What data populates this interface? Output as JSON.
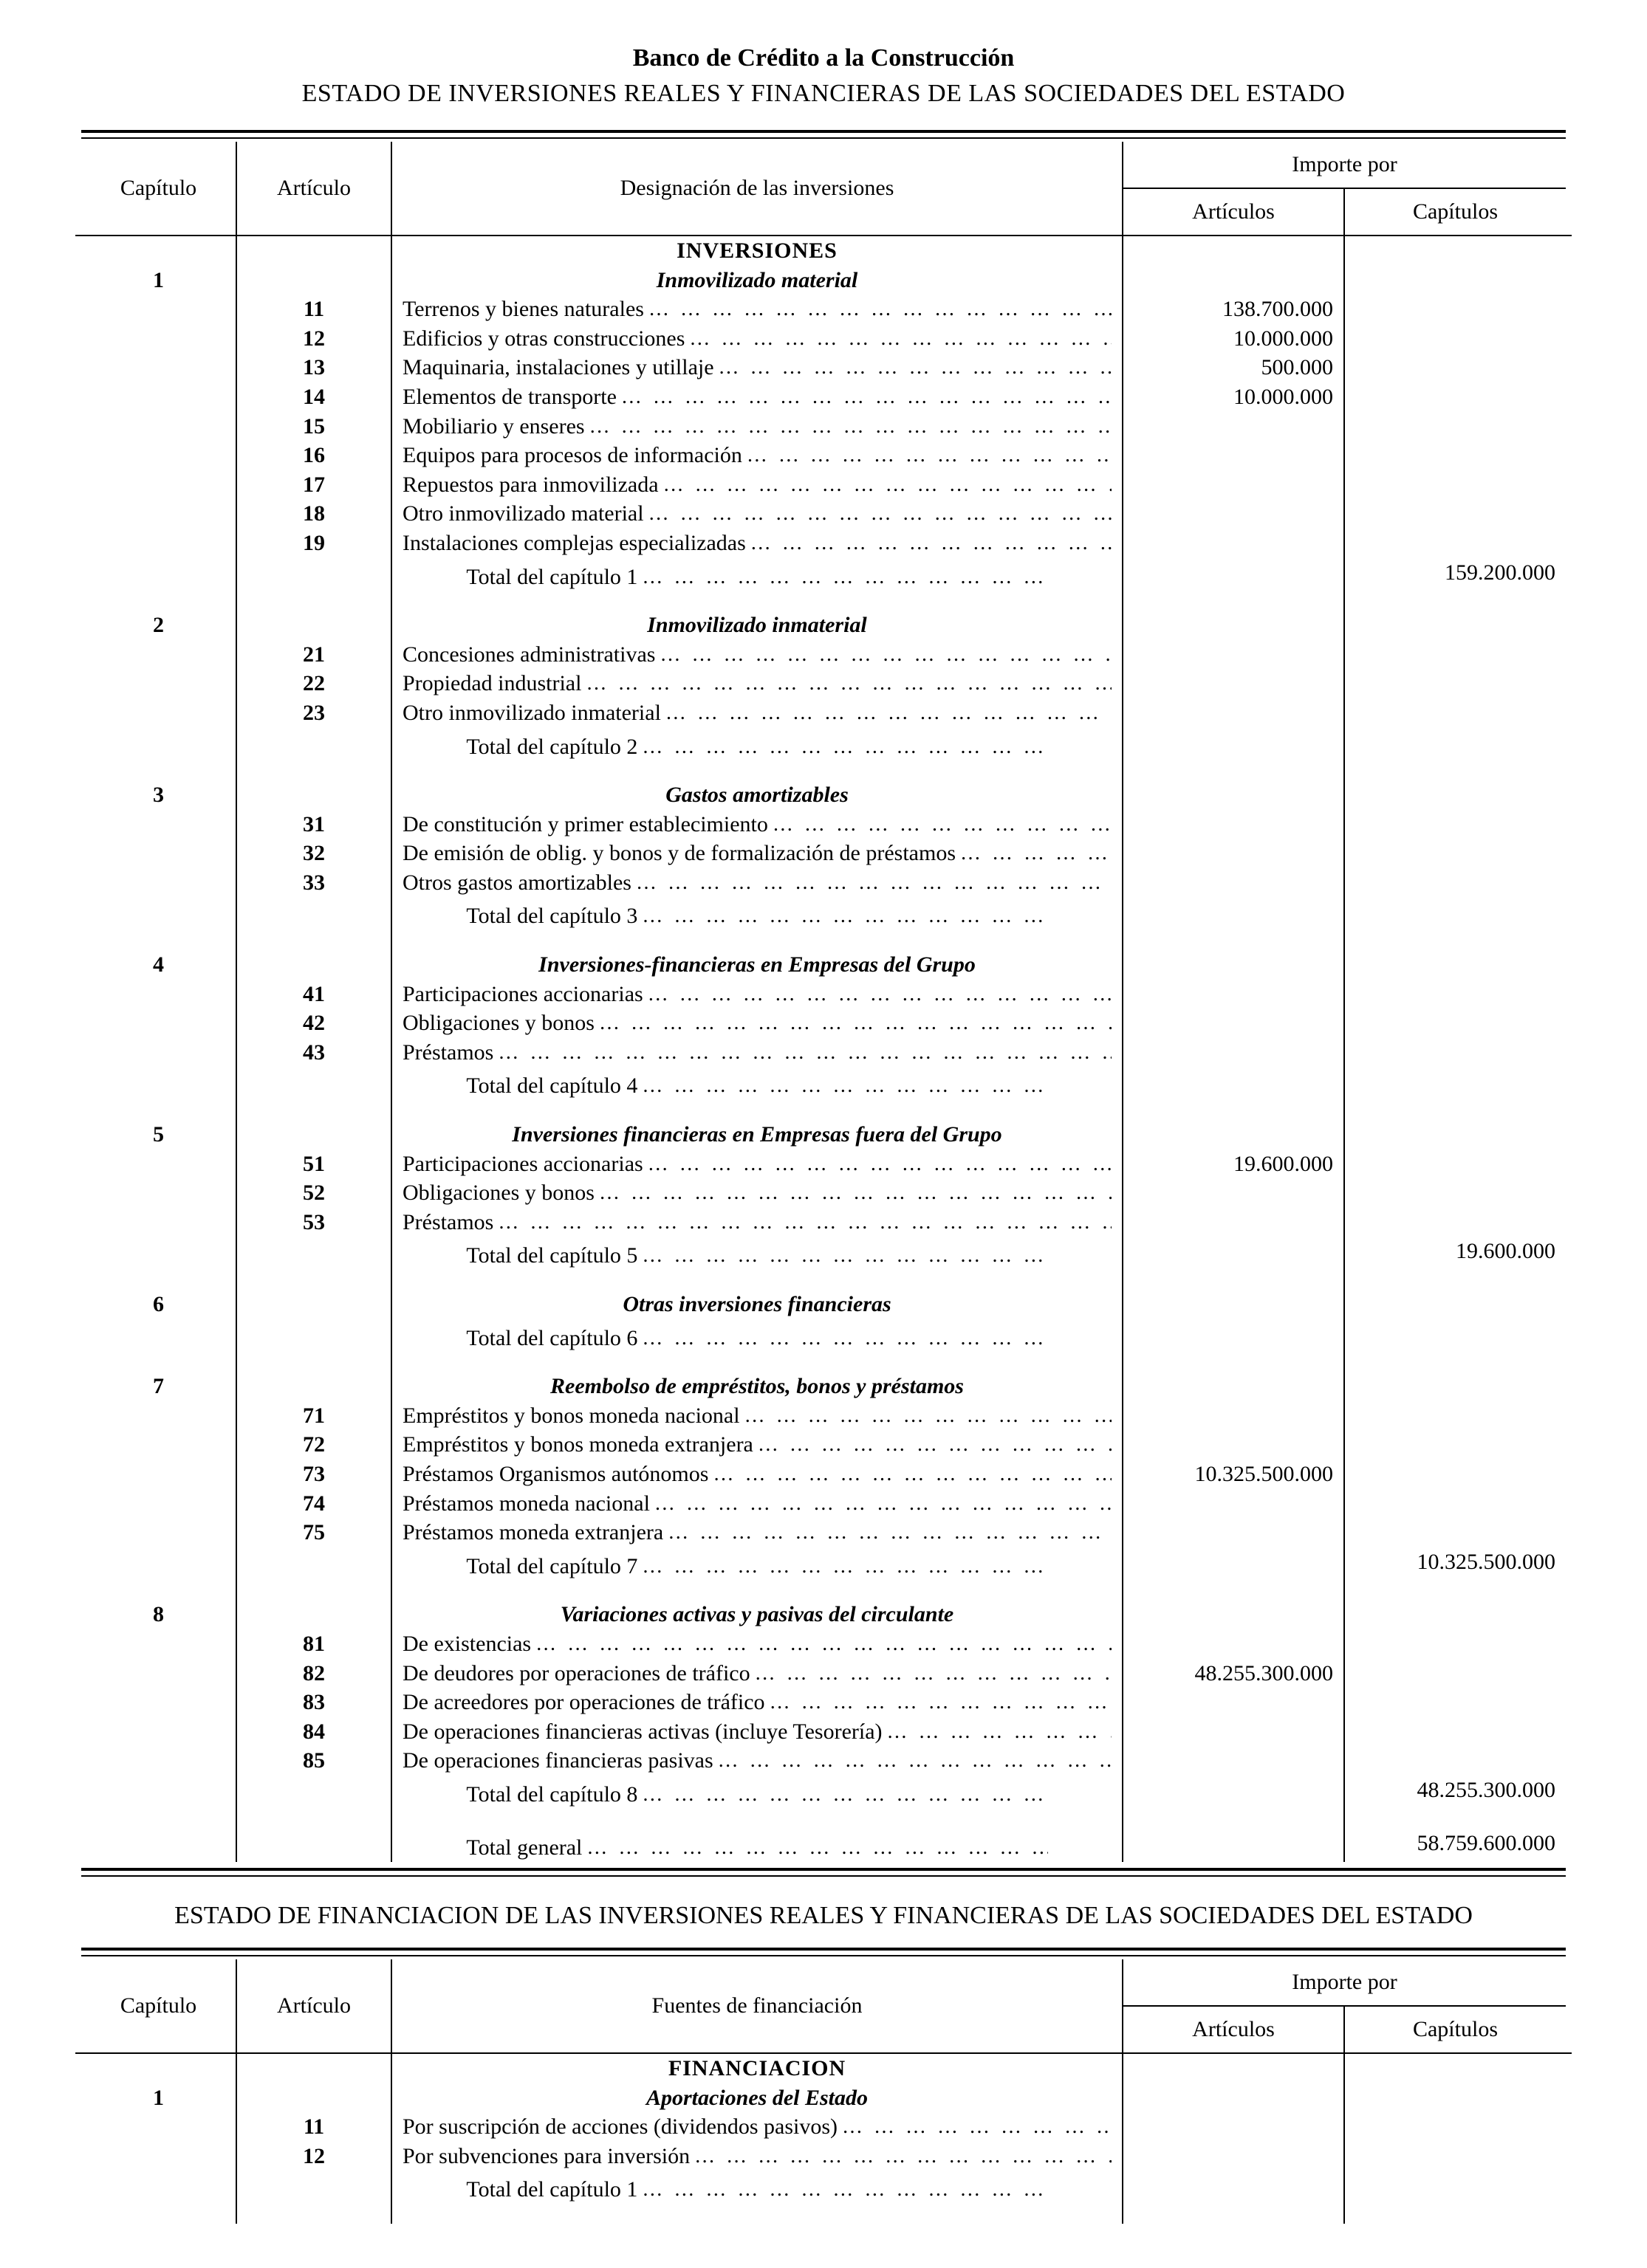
{
  "org_title": "Banco de Crédito a la Construcción",
  "table1_title": "ESTADO DE INVERSIONES REALES Y FINANCIERAS DE LAS SOCIEDADES DEL ESTADO",
  "table2_title": "ESTADO DE FINANCIACION DE LAS INVERSIONES REALES Y FINANCIERAS DE LAS SOCIEDADES DEL ESTADO",
  "header": {
    "capitulo": "Capítulo",
    "articulo": "Artículo",
    "desig_inv": "Designación de las inversiones",
    "fuentes": "Fuentes de financiación",
    "importe_por": "Importe por",
    "articulos": "Artículos",
    "capitulos": "Capítulos"
  },
  "inversions_heading": "INVERSIONES",
  "financiacion_heading": "FINANCIACION",
  "chapters": [
    {
      "num": "1",
      "subtitle": "Inmovilizado material",
      "items": [
        {
          "art": "11",
          "label": "Terrenos y bienes naturales",
          "art_amount": "138.700.000"
        },
        {
          "art": "12",
          "label": "Edificios y otras construcciones",
          "art_amount": "10.000.000"
        },
        {
          "art": "13",
          "label": "Maquinaria, instalaciones y utillaje",
          "art_amount": "500.000"
        },
        {
          "art": "14",
          "label": "Elementos de transporte",
          "art_amount": "10.000.000"
        },
        {
          "art": "15",
          "label": "Mobiliario y enseres",
          "art_amount": ""
        },
        {
          "art": "16",
          "label": "Equipos para procesos de información",
          "art_amount": ""
        },
        {
          "art": "17",
          "label": "Repuestos para inmovilizada",
          "art_amount": ""
        },
        {
          "art": "18",
          "label": "Otro inmovilizado material",
          "art_amount": ""
        },
        {
          "art": "19",
          "label": "Instalaciones complejas especializadas",
          "art_amount": ""
        }
      ],
      "total_label": "Total del capítulo 1",
      "cap_amount": "159.200.000"
    },
    {
      "num": "2",
      "subtitle": "Inmovilizado inmaterial",
      "items": [
        {
          "art": "21",
          "label": "Concesiones administrativas",
          "art_amount": ""
        },
        {
          "art": "22",
          "label": "Propiedad industrial",
          "art_amount": ""
        },
        {
          "art": "23",
          "label": "Otro inmovilizado inmaterial",
          "art_amount": ""
        }
      ],
      "total_label": "Total del capítulo 2",
      "cap_amount": ""
    },
    {
      "num": "3",
      "subtitle": "Gastos amortizables",
      "items": [
        {
          "art": "31",
          "label": "De constitución y primer establecimiento",
          "art_amount": ""
        },
        {
          "art": "32",
          "label": "De emisión de oblig. y bonos y de formalización de préstamos",
          "art_amount": ""
        },
        {
          "art": "33",
          "label": "Otros gastos amortizables",
          "art_amount": ""
        }
      ],
      "total_label": "Total del capítulo 3",
      "cap_amount": ""
    },
    {
      "num": "4",
      "subtitle": "Inversiones-financieras en Empresas del Grupo",
      "items": [
        {
          "art": "41",
          "label": "Participaciones accionarias",
          "art_amount": ""
        },
        {
          "art": "42",
          "label": "Obligaciones y bonos",
          "art_amount": ""
        },
        {
          "art": "43",
          "label": "Préstamos",
          "art_amount": ""
        }
      ],
      "total_label": "Total del capítulo 4",
      "cap_amount": ""
    },
    {
      "num": "5",
      "subtitle": "Inversiones financieras en Empresas fuera del Grupo",
      "items": [
        {
          "art": "51",
          "label": "Participaciones accionarias",
          "art_amount": "19.600.000"
        },
        {
          "art": "52",
          "label": "Obligaciones y bonos",
          "art_amount": ""
        },
        {
          "art": "53",
          "label": "Préstamos",
          "art_amount": ""
        }
      ],
      "total_label": "Total del capítulo 5",
      "cap_amount": "19.600.000"
    },
    {
      "num": "6",
      "subtitle": "Otras inversiones financieras",
      "items": [],
      "total_label": "Total del capítulo 6",
      "cap_amount": ""
    },
    {
      "num": "7",
      "subtitle": "Reembolso de empréstitos, bonos y préstamos",
      "items": [
        {
          "art": "71",
          "label": "Empréstitos y bonos moneda nacional",
          "art_amount": ""
        },
        {
          "art": "72",
          "label": "Empréstitos y bonos moneda extranjera",
          "art_amount": ""
        },
        {
          "art": "73",
          "label": "Préstamos Organismos autónomos",
          "art_amount": "10.325.500.000"
        },
        {
          "art": "74",
          "label": "Préstamos moneda nacional",
          "art_amount": ""
        },
        {
          "art": "75",
          "label": "Préstamos moneda extranjera",
          "art_amount": ""
        }
      ],
      "total_label": "Total del capítulo 7",
      "cap_amount": "10.325.500.000"
    },
    {
      "num": "8",
      "subtitle": "Variaciones activas y pasivas del circulante",
      "items": [
        {
          "art": "81",
          "label": "De existencias",
          "art_amount": ""
        },
        {
          "art": "82",
          "label": "De deudores por operaciones de tráfico",
          "art_amount": "48.255.300.000"
        },
        {
          "art": "83",
          "label": "De acreedores por operaciones de tráfico",
          "art_amount": ""
        },
        {
          "art": "84",
          "label": "De operaciones financieras activas (incluye Tesorería)",
          "art_amount": ""
        },
        {
          "art": "85",
          "label": "De operaciones financieras pasivas",
          "art_amount": ""
        }
      ],
      "total_label": "Total del capítulo 8",
      "cap_amount": "48.255.300.000"
    }
  ],
  "total_general_label": "Total general",
  "total_general_amount": "58.759.600.000",
  "fin_chapters": [
    {
      "num": "1",
      "subtitle": "Aportaciones del Estado",
      "items": [
        {
          "art": "11",
          "label": "Por suscripción de acciones (dividendos pasivos)",
          "art_amount": ""
        },
        {
          "art": "12",
          "label": "Por subvenciones para inversión",
          "art_amount": ""
        }
      ],
      "total_label": "Total del capítulo 1",
      "cap_amount": ""
    }
  ]
}
